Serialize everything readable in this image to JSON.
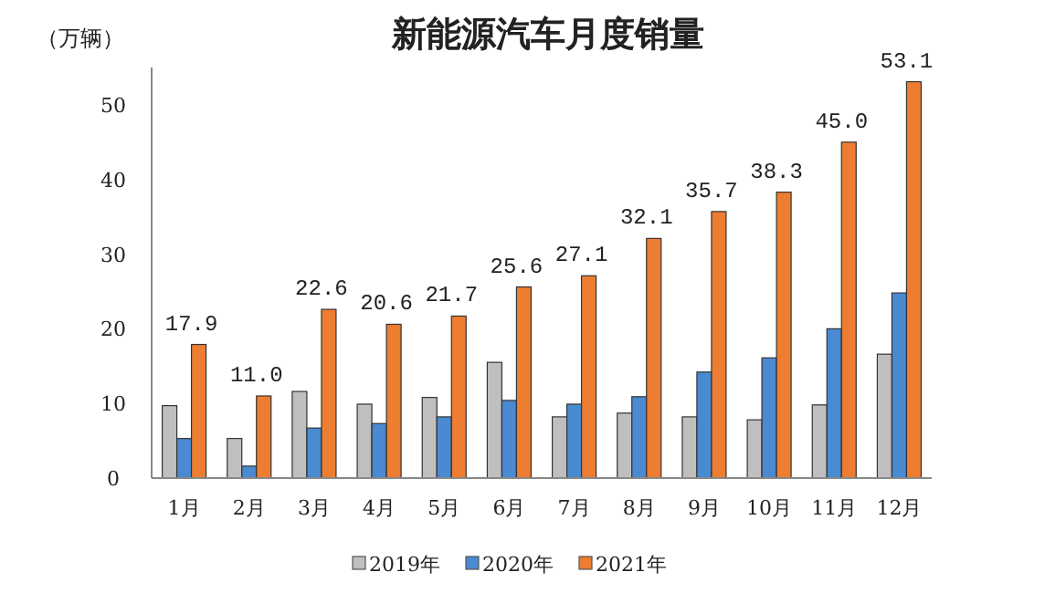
{
  "chart_data": {
    "type": "bar",
    "title": "新能源汽车月度销量",
    "ylabel": "（万辆）",
    "categories": [
      "1月",
      "2月",
      "3月",
      "4月",
      "5月",
      "6月",
      "7月",
      "8月",
      "9月",
      "10月",
      "11月",
      "12月"
    ],
    "series": [
      {
        "name": "2019年",
        "color": "#bfbfbf",
        "values": [
          9.7,
          5.3,
          11.6,
          9.9,
          10.8,
          15.5,
          8.2,
          8.7,
          8.2,
          7.8,
          9.8,
          16.6
        ]
      },
      {
        "name": "2020年",
        "color": "#4a8ad0",
        "values": [
          5.3,
          1.6,
          6.7,
          7.3,
          8.2,
          10.4,
          9.9,
          10.9,
          14.2,
          16.1,
          20.0,
          24.8
        ]
      },
      {
        "name": "2021年",
        "color": "#ed7d31",
        "values": [
          17.9,
          11.0,
          22.6,
          20.6,
          21.7,
          25.6,
          27.1,
          32.1,
          35.7,
          38.3,
          45.0,
          53.1
        ],
        "value_labels": [
          "17.9",
          "11.0",
          "22.6",
          "20.6",
          "21.7",
          "25.6",
          "27.1",
          "32.1",
          "35.7",
          "38.3",
          "45.0",
          "53.1"
        ]
      }
    ],
    "ylim": [
      0,
      55
    ],
    "yticks": [
      0,
      10,
      20,
      30,
      40,
      50
    ],
    "legend": "bottom"
  }
}
